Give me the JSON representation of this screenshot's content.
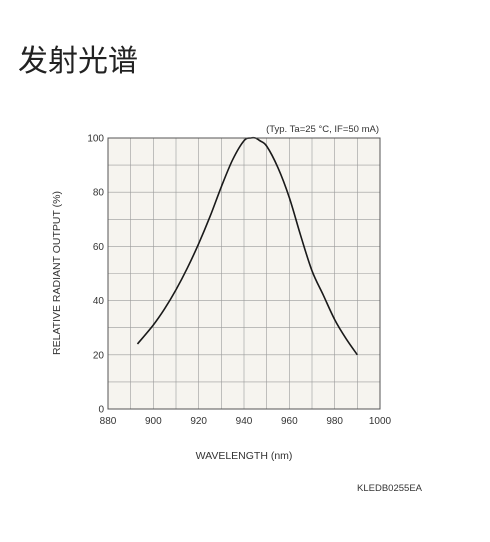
{
  "page": {
    "title": "发射光谱"
  },
  "chart_data": {
    "type": "line",
    "title": "",
    "annotation": "(Typ. Ta=25 °C, IF=50 mA)",
    "xlabel": "WAVELENGTH (nm)",
    "ylabel": "RELATIVE RADIANT OUTPUT (%)",
    "xlim": [
      880,
      1000
    ],
    "ylim": [
      0,
      100
    ],
    "xticks": [
      "880",
      "900",
      "920",
      "940",
      "960",
      "980",
      "1000"
    ],
    "yticks": [
      "0",
      "20",
      "40",
      "60",
      "80",
      "100"
    ],
    "grid": true,
    "figure_code": "KLEDB0255EA",
    "colors": {
      "line": "#1a1a1a",
      "plot_bg": "#f6f4ef",
      "grid": "#9a9a9a",
      "frame": "#555555"
    },
    "series": [
      {
        "x": [
          893,
          900,
          905,
          910,
          915,
          920,
          925,
          930,
          935,
          940,
          943,
          945,
          947,
          950,
          955,
          960,
          965,
          970,
          975,
          980,
          985,
          990
        ],
        "y": [
          24,
          31,
          37,
          44,
          52,
          61,
          71,
          82,
          92,
          99,
          100,
          100,
          99,
          97,
          89,
          78,
          64,
          51,
          42,
          33,
          26,
          20
        ]
      }
    ]
  }
}
